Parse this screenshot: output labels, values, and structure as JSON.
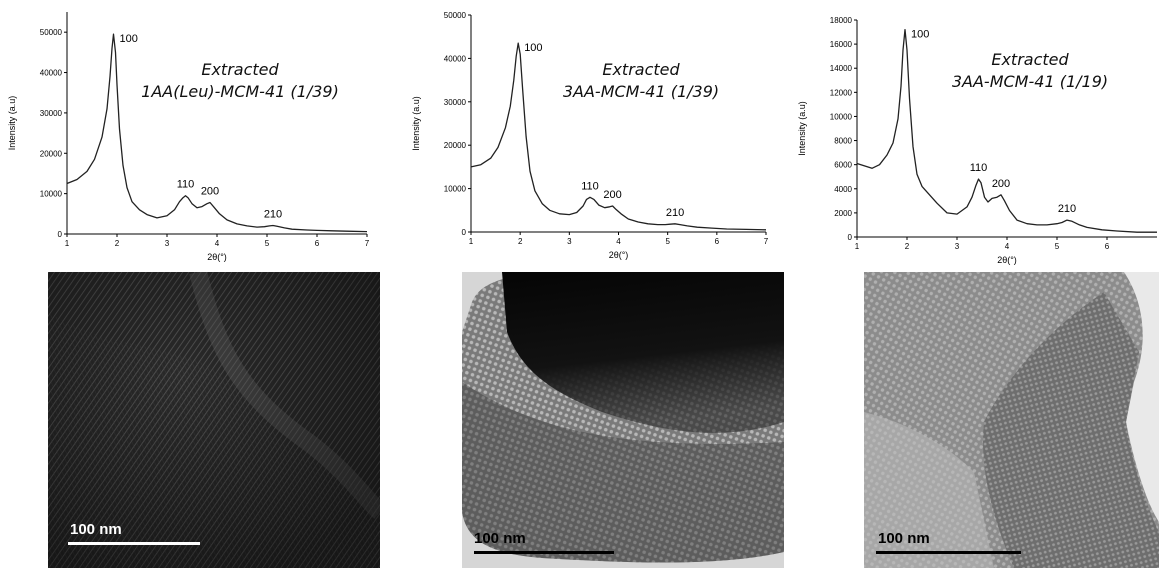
{
  "chart_data": [
    {
      "type": "line",
      "title": "Extracted",
      "subtitle": "1AA(Leu)-MCM-41 (1/39)",
      "xlabel": "2θ(°)",
      "ylabel": "Intensity (a.u)",
      "xlim": [
        1,
        7
      ],
      "ylim": [
        0,
        55000
      ],
      "x_ticks": [
        1,
        2,
        3,
        4,
        5,
        6,
        7
      ],
      "y_ticks": [
        0,
        10000,
        20000,
        30000,
        40000,
        50000
      ],
      "grid": false,
      "series": [
        {
          "x": [
            1.0,
            1.2,
            1.4,
            1.55,
            1.7,
            1.8,
            1.86,
            1.9,
            1.93,
            1.97,
            2.0,
            2.05,
            2.12,
            2.2,
            2.3,
            2.45,
            2.6,
            2.8,
            3.0,
            3.15,
            3.25,
            3.32,
            3.37,
            3.42,
            3.5,
            3.6,
            3.7,
            3.8,
            3.86,
            3.95,
            4.05,
            4.2,
            4.4,
            4.6,
            4.8,
            4.95,
            5.05,
            5.12,
            5.2,
            5.35,
            5.5,
            5.8,
            6.0,
            6.3,
            6.6,
            7.0
          ],
          "y": [
            12500,
            13500,
            15500,
            18500,
            24000,
            31000,
            39000,
            46000,
            49500,
            45000,
            37000,
            26000,
            17000,
            11500,
            8000,
            6000,
            4800,
            4000,
            4500,
            6000,
            8000,
            9000,
            9500,
            9000,
            7500,
            6500,
            6800,
            7500,
            7800,
            6500,
            5000,
            3500,
            2500,
            2000,
            1700,
            1800,
            2000,
            2100,
            1900,
            1500,
            1200,
            1000,
            900,
            800,
            700,
            600
          ]
        }
      ],
      "annotations": [
        {
          "text": "100",
          "x": 1.93,
          "y": 49500
        },
        {
          "text": "110",
          "x": 3.37,
          "y": 9500
        },
        {
          "text": "200",
          "x": 3.86,
          "y": 7800
        },
        {
          "text": "210",
          "x": 5.12,
          "y": 2100
        }
      ]
    },
    {
      "type": "line",
      "title": "Extracted",
      "subtitle": "3AA-MCM-41 (1/39)",
      "xlabel": "2θ(°)",
      "ylabel": "Intensity (a.u)",
      "xlim": [
        1,
        7
      ],
      "ylim": [
        0,
        50000
      ],
      "x_ticks": [
        1,
        2,
        3,
        4,
        5,
        6,
        7
      ],
      "y_ticks": [
        0,
        10000,
        20000,
        30000,
        40000,
        50000
      ],
      "grid": false,
      "series": [
        {
          "x": [
            1.0,
            1.2,
            1.4,
            1.55,
            1.7,
            1.8,
            1.87,
            1.92,
            1.96,
            2.0,
            2.05,
            2.12,
            2.2,
            2.3,
            2.45,
            2.6,
            2.8,
            3.0,
            3.15,
            3.28,
            3.35,
            3.42,
            3.5,
            3.6,
            3.72,
            3.82,
            3.88,
            3.95,
            4.05,
            4.2,
            4.4,
            4.6,
            4.8,
            4.95,
            5.05,
            5.15,
            5.25,
            5.4,
            5.6,
            5.9,
            6.2,
            6.6,
            7.0
          ],
          "y": [
            15000,
            15500,
            17000,
            19500,
            24000,
            29000,
            35000,
            40500,
            43500,
            41000,
            33000,
            22000,
            14000,
            9500,
            6500,
            5000,
            4200,
            4000,
            4500,
            6000,
            7500,
            8000,
            7500,
            6200,
            5600,
            5800,
            6000,
            5200,
            4200,
            3000,
            2300,
            1900,
            1700,
            1700,
            1800,
            1900,
            1700,
            1400,
            1100,
            900,
            700,
            600,
            500
          ]
        }
      ],
      "annotations": [
        {
          "text": "100",
          "x": 1.96,
          "y": 43500
        },
        {
          "text": "110",
          "x": 3.42,
          "y": 8000
        },
        {
          "text": "200",
          "x": 3.88,
          "y": 6000
        },
        {
          "text": "210",
          "x": 5.15,
          "y": 1900
        }
      ]
    },
    {
      "type": "line",
      "title": "Extracted",
      "subtitle": "3AA-MCM-41 (1/19)",
      "xlabel": "2θ(°)",
      "ylabel": "Intensity (a.u)",
      "xlim": [
        1,
        7
      ],
      "ylim": [
        0,
        18000
      ],
      "x_ticks": [
        1,
        2,
        3,
        4,
        5,
        6
      ],
      "y_ticks": [
        0,
        2000,
        4000,
        6000,
        8000,
        10000,
        12000,
        14000,
        16000,
        18000
      ],
      "grid": false,
      "series": [
        {
          "x": [
            1.0,
            1.15,
            1.3,
            1.45,
            1.6,
            1.72,
            1.82,
            1.88,
            1.92,
            1.96,
            2.0,
            2.05,
            2.12,
            2.2,
            2.3,
            2.45,
            2.6,
            2.8,
            3.0,
            3.2,
            3.3,
            3.38,
            3.43,
            3.48,
            3.55,
            3.62,
            3.7,
            3.8,
            3.88,
            3.95,
            4.05,
            4.2,
            4.4,
            4.6,
            4.8,
            5.0,
            5.1,
            5.2,
            5.3,
            5.45,
            5.6,
            5.9,
            6.2,
            6.6,
            7.0
          ],
          "y": [
            6100,
            5900,
            5700,
            6000,
            6800,
            7800,
            9800,
            12500,
            15500,
            17200,
            15500,
            11500,
            7500,
            5200,
            4200,
            3500,
            2800,
            2000,
            1900,
            2500,
            3300,
            4300,
            4800,
            4500,
            3300,
            2900,
            3200,
            3300,
            3500,
            3000,
            2200,
            1400,
            1100,
            1000,
            1000,
            1100,
            1200,
            1400,
            1300,
            1000,
            800,
            600,
            500,
            400,
            400
          ]
        }
      ],
      "annotations": [
        {
          "text": "100",
          "x": 1.96,
          "y": 17200
        },
        {
          "text": "110",
          "x": 3.43,
          "y": 4800
        },
        {
          "text": "200",
          "x": 3.88,
          "y": 3500
        },
        {
          "text": "210",
          "x": 5.2,
          "y": 1400
        }
      ]
    }
  ],
  "micrographs": [
    {
      "scale_text": "100 nm",
      "tone": "dark"
    },
    {
      "scale_text": "100 nm",
      "tone": "mixed"
    },
    {
      "scale_text": "100 nm",
      "tone": "light"
    }
  ]
}
